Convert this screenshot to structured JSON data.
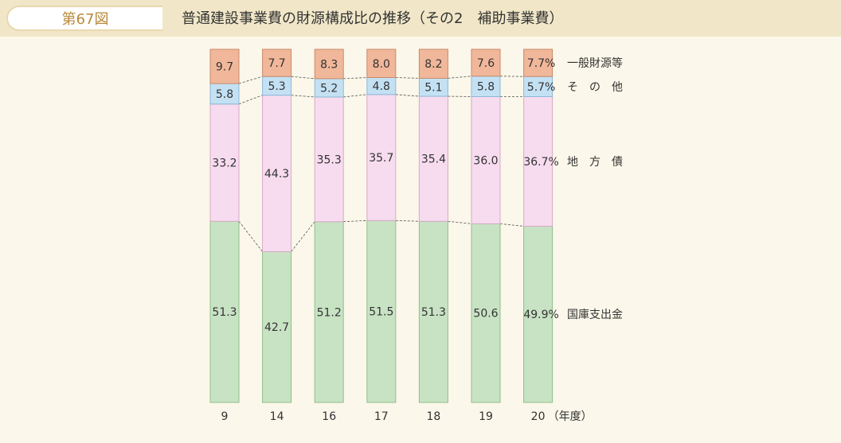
{
  "header": {
    "figure_number": "第67図",
    "title": "普通建設事業費の財源構成比の推移（その2　補助事業費）"
  },
  "chart_data": {
    "type": "bar",
    "stacked": true,
    "normalized_to": 100,
    "categories": [
      "9",
      "14",
      "16",
      "17",
      "18",
      "19",
      "20"
    ],
    "category_unit": "（年度）",
    "series": [
      {
        "name": "国庫支出金",
        "color": "#c8e3c4",
        "values": [
          51.3,
          42.7,
          51.2,
          51.5,
          51.3,
          50.6,
          49.9
        ]
      },
      {
        "name": "地　方　債",
        "color": "#f7dcef",
        "values": [
          33.2,
          44.3,
          35.3,
          35.7,
          35.4,
          36.0,
          36.7
        ]
      },
      {
        "name": "そ　の　他",
        "color": "#c4e1f4",
        "values": [
          5.8,
          5.3,
          5.2,
          4.8,
          5.1,
          5.8,
          5.7
        ]
      },
      {
        "name": "一般財源等",
        "color": "#f1b79a",
        "values": [
          9.7,
          7.7,
          8.3,
          8.0,
          8.2,
          7.6,
          7.7
        ]
      }
    ],
    "last_bar_labels": [
      "49.9%",
      "36.7%",
      "5.7%",
      "7.7%"
    ],
    "connector_lines": "dashed",
    "legend_position": "right"
  }
}
